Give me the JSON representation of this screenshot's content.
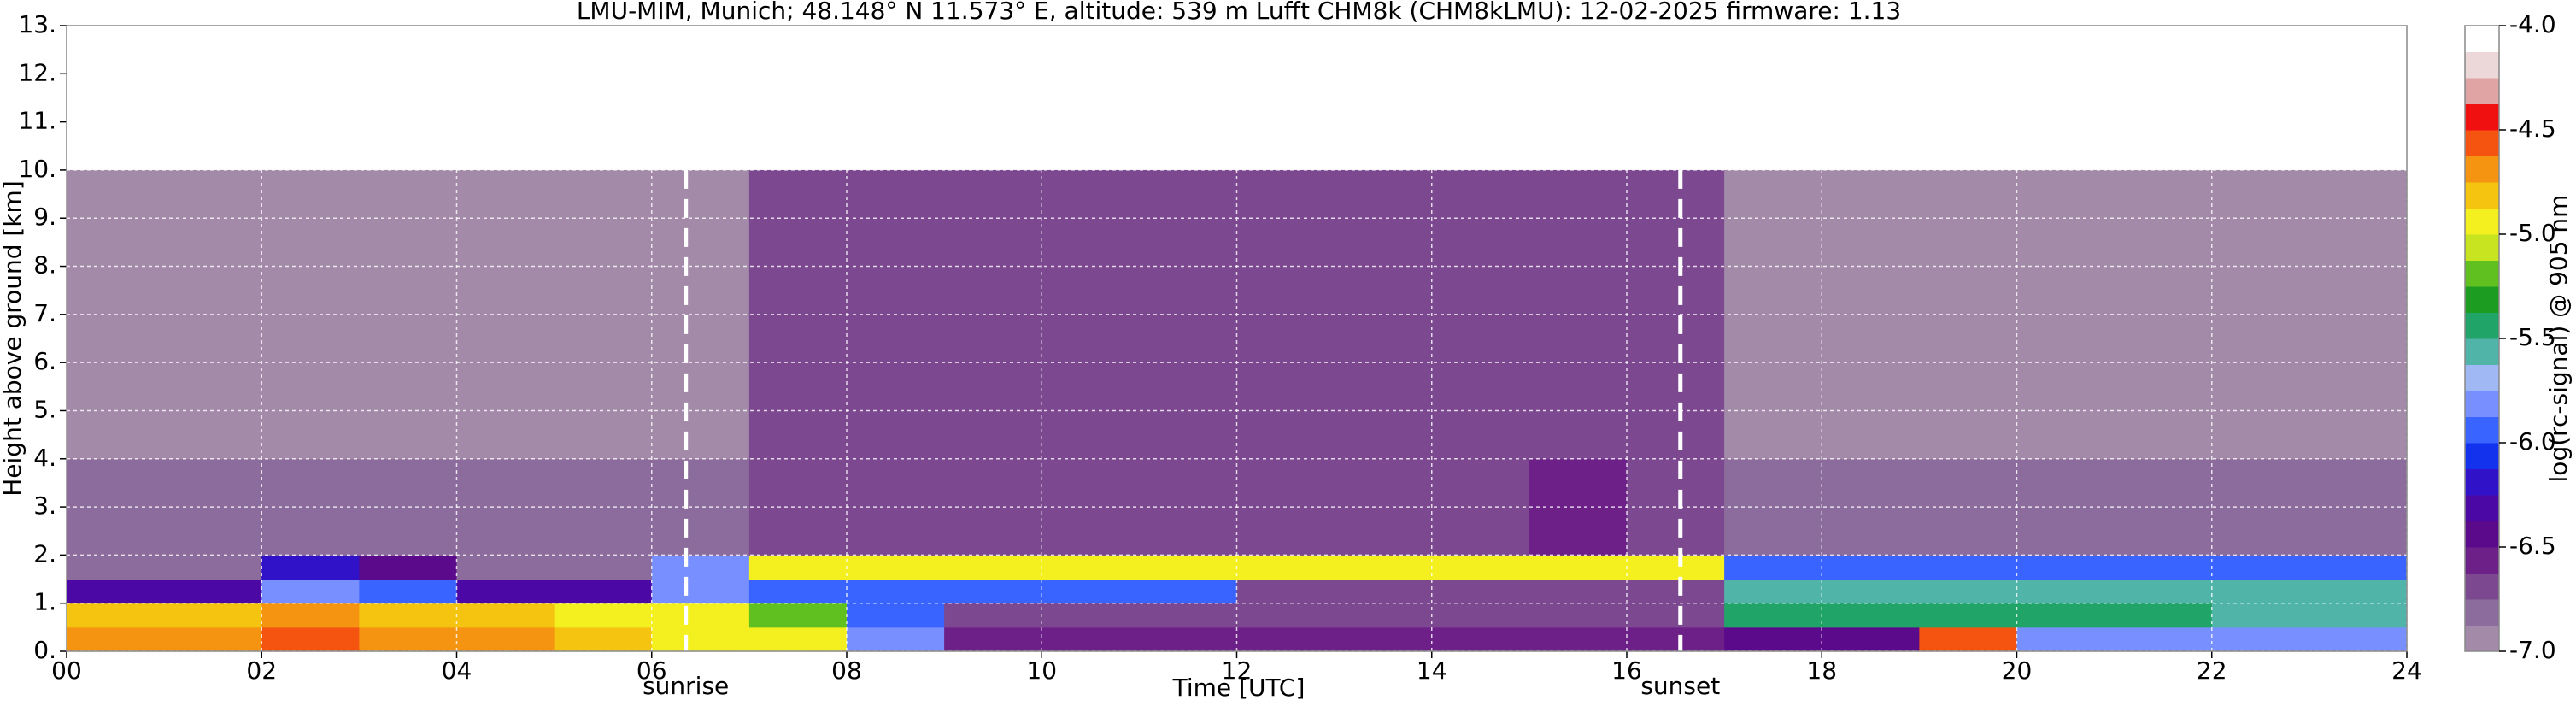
{
  "chart_data": {
    "type": "heatmap",
    "title": "LMU-MIM, Munich; 48.148° N 11.573° E, altitude: 539 m    Lufft CHM8k (CHM8kLMU): 12-02-2025    firmware: 1.13",
    "x_label": "Time [UTC]",
    "y_label": "Height above ground [km]",
    "colorbar_label": "log(rc-signal) @ 905 nm",
    "xlim": [
      0,
      24
    ],
    "xticks": [
      {
        "value": 0,
        "label": "00"
      },
      {
        "value": 2,
        "label": "02"
      },
      {
        "value": 4,
        "label": "04"
      },
      {
        "value": 6,
        "label": "06"
      },
      {
        "value": 8,
        "label": "08"
      },
      {
        "value": 10,
        "label": "10"
      },
      {
        "value": 12,
        "label": "12"
      },
      {
        "value": 14,
        "label": "14"
      },
      {
        "value": 16,
        "label": "16"
      },
      {
        "value": 18,
        "label": "18"
      },
      {
        "value": 20,
        "label": "20"
      },
      {
        "value": 22,
        "label": "22"
      },
      {
        "value": 24,
        "label": "24"
      }
    ],
    "ylim": [
      0,
      13
    ],
    "yticks": [
      {
        "value": 0,
        "label": "0."
      },
      {
        "value": 1,
        "label": "1."
      },
      {
        "value": 2,
        "label": "2."
      },
      {
        "value": 3,
        "label": "3."
      },
      {
        "value": 4,
        "label": "4."
      },
      {
        "value": 5,
        "label": "5."
      },
      {
        "value": 6,
        "label": "6."
      },
      {
        "value": 7,
        "label": "7."
      },
      {
        "value": 8,
        "label": "8."
      },
      {
        "value": 9,
        "label": "9."
      },
      {
        "value": 10,
        "label": "10."
      },
      {
        "value": 11,
        "label": "11."
      },
      {
        "value": 12,
        "label": "12."
      },
      {
        "value": 13,
        "label": "13."
      }
    ],
    "grid": true,
    "clim": [
      -7,
      -4
    ],
    "cticks": [
      {
        "value": -7,
        "label": "-7.0"
      },
      {
        "value": -6.5,
        "label": "-6.5"
      },
      {
        "value": -6,
        "label": "-6.0"
      },
      {
        "value": -5.5,
        "label": "-5.5"
      },
      {
        "value": -5,
        "label": "-5.0"
      },
      {
        "value": -4.5,
        "label": "-4.5"
      },
      {
        "value": -4,
        "label": "-4.0"
      }
    ],
    "colors": [
      "#a38aa8",
      "#8c6c9c",
      "#7c4890",
      "#6c2088",
      "#5c0a8c",
      "#4c08a4",
      "#3012c8",
      "#1232ee",
      "#3a64ff",
      "#7890ff",
      "#a0b8f4",
      "#50b4a8",
      "#20a468",
      "#1c9c20",
      "#60c020",
      "#c8e420",
      "#f4f020",
      "#f4c410",
      "#f49410",
      "#f45410",
      "#f01010",
      "#e0a4a4",
      "#ecd8d8",
      "#ffffff"
    ],
    "x_edges": [
      0,
      1,
      2,
      3,
      4,
      5,
      6,
      7,
      8,
      9,
      10,
      11,
      12,
      13,
      14,
      15,
      16,
      17,
      18,
      19,
      20,
      21,
      22,
      23,
      24
    ],
    "y_edges": [
      0,
      0.5,
      1,
      1.5,
      2,
      4,
      10
    ],
    "z": [
      [
        -4.7,
        -4.7,
        -4.6,
        -4.7,
        -4.7,
        -4.8,
        -4.9,
        -5.0,
        -5.8,
        -6.6,
        -6.6,
        -6.6,
        -6.6,
        -6.6,
        -6.6,
        -6.6,
        -6.6,
        -6.5,
        -6.4,
        -4.6,
        -5.8,
        -5.8,
        -5.8,
        -5.8
      ],
      [
        -4.8,
        -4.8,
        -4.7,
        -4.8,
        -4.8,
        -5.0,
        -5.0,
        -5.2,
        -6.0,
        -6.7,
        -6.7,
        -6.7,
        -6.7,
        -6.7,
        -6.7,
        -6.7,
        -6.7,
        -5.5,
        -5.5,
        -5.5,
        -5.5,
        -5.5,
        -5.6,
        -5.6
      ],
      [
        -6.3,
        -6.3,
        -5.8,
        -6.0,
        -6.3,
        -6.3,
        -5.8,
        -6.0,
        -6.0,
        -6.0,
        -6.0,
        -6.0,
        -6.7,
        -6.7,
        -6.7,
        -6.7,
        -6.7,
        -5.6,
        -5.6,
        -5.6,
        -5.6,
        -5.6,
        -5.6,
        -5.6
      ],
      [
        -6.8,
        -6.8,
        -6.2,
        -6.5,
        -6.8,
        -6.8,
        -5.8,
        -5.0,
        -5.0,
        -5.0,
        -5.0,
        -5.0,
        -5.0,
        -5.0,
        -5.0,
        -5.0,
        -5.0,
        -6.0,
        -6.0,
        -6.0,
        -6.0,
        -6.0,
        -6.0,
        -6.0
      ],
      [
        -6.8,
        -6.8,
        -6.8,
        -6.8,
        -6.8,
        -6.8,
        -6.8,
        -6.7,
        -6.7,
        -6.7,
        -6.7,
        -6.7,
        -6.7,
        -6.7,
        -6.7,
        -6.6,
        -6.7,
        -6.8,
        -6.8,
        -6.8,
        -6.8,
        -6.8,
        -6.8,
        -6.8
      ],
      [
        -6.9,
        -6.9,
        -6.9,
        -6.9,
        -6.9,
        -6.9,
        -6.9,
        -6.7,
        -6.7,
        -6.7,
        -6.7,
        -6.7,
        -6.7,
        -6.7,
        -6.7,
        -6.7,
        -6.7,
        -6.9,
        -6.9,
        -6.9,
        -6.9,
        -6.9,
        -6.9,
        -6.9
      ]
    ],
    "annotations": [
      {
        "text": "sunrise",
        "x": 6.35
      },
      {
        "text": "sunset",
        "x": 16.55
      }
    ]
  }
}
